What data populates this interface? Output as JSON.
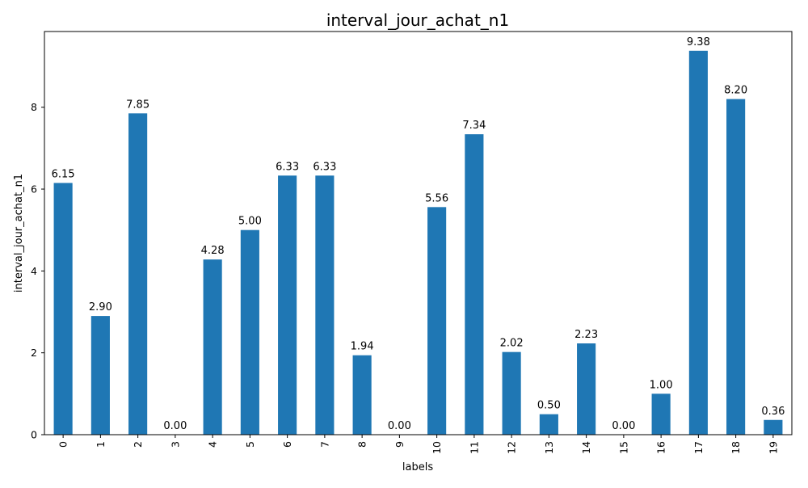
{
  "chart_data": {
    "type": "bar",
    "title": "interval_jour_achat_n1",
    "xlabel": "labels",
    "ylabel": "interval_jour_achat_n1",
    "categories": [
      "0",
      "1",
      "2",
      "3",
      "4",
      "5",
      "6",
      "7",
      "8",
      "9",
      "10",
      "11",
      "12",
      "13",
      "14",
      "15",
      "16",
      "17",
      "18",
      "19"
    ],
    "values": [
      6.15,
      2.9,
      7.85,
      0.0,
      4.28,
      5.0,
      6.33,
      6.33,
      1.94,
      0.0,
      5.56,
      7.34,
      2.02,
      0.5,
      2.23,
      0.0,
      1.0,
      9.38,
      8.2,
      0.36
    ],
    "value_labels": [
      "6.15",
      "2.90",
      "7.85",
      "0.00",
      "4.28",
      "5.00",
      "6.33",
      "6.33",
      "1.94",
      "0.00",
      "5.56",
      "7.34",
      "2.02",
      "0.50",
      "2.23",
      "0.00",
      "1.00",
      "9.38",
      "8.20",
      "0.36"
    ],
    "yticks": [
      0,
      2,
      4,
      6,
      8
    ],
    "ylim": [
      0,
      9.85
    ],
    "grid": false,
    "legend": "none",
    "bar_color": "#1f77b4",
    "axis_color": "#000000",
    "background_color": "#ffffff"
  }
}
